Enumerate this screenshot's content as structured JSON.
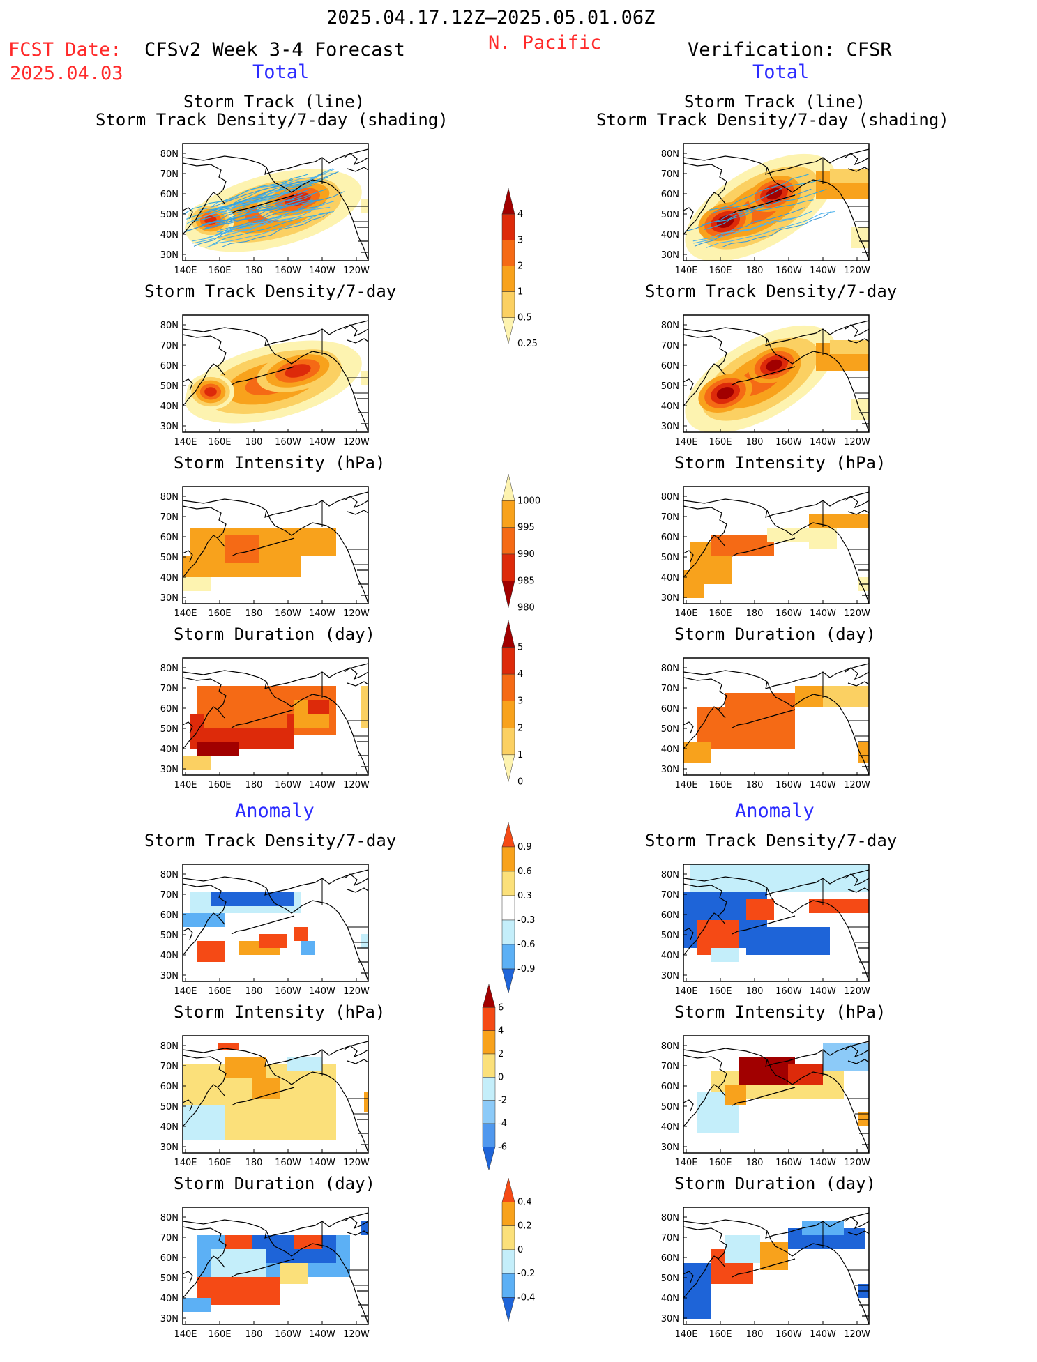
{
  "header": {
    "period": "2025.04.17.12Z–2025.05.01.06Z",
    "region": "N. Pacific",
    "fcst_label": "FCST Date:",
    "fcst_date": "2025.04.03",
    "left_model": "CFSv2 Week 3-4 Forecast",
    "right_model": "Verification: CFSR",
    "total_left": "Total",
    "total_right": "Total",
    "anomaly_left": "Anomaly",
    "anomaly_right": "Anomaly"
  },
  "panel_titles": {
    "track_line": "Storm Track (line)",
    "track_shading": "Storm Track Density/7-day (shading)",
    "density": "Storm Track Density/7-day",
    "intensity": "Storm Intensity (hPa)",
    "duration": "Storm Duration (day)"
  },
  "axis": {
    "lat_labels": [
      "80N",
      "70N",
      "60N",
      "50N",
      "40N",
      "30N"
    ],
    "lon_labels": [
      "140E",
      "160E",
      "180",
      "160W",
      "140W",
      "120W"
    ]
  },
  "colorbars": {
    "density_total": {
      "labels": [
        "4",
        "3",
        "2",
        "1",
        "0.5",
        "0.25"
      ],
      "colors": [
        "#a10000",
        "#dd2a0a",
        "#f56a15",
        "#f8a21c",
        "#fbd062",
        "#fdf3b0"
      ]
    },
    "intensity_total": {
      "labels": [
        "1000",
        "995",
        "990",
        "985",
        "980"
      ],
      "colors": [
        "#fdf3b0",
        "#f8a21c",
        "#f56a15",
        "#dd2a0a",
        "#a10000"
      ]
    },
    "duration_total": {
      "labels": [
        "5",
        "4",
        "3",
        "2",
        "1",
        "0"
      ],
      "colors": [
        "#a10000",
        "#dd2a0a",
        "#f56a15",
        "#f8a21c",
        "#fbd062",
        "#fdf3b0"
      ]
    },
    "density_anom": {
      "labels": [
        "0.9",
        "0.6",
        "0.3",
        "-0.3",
        "-0.6",
        "-0.9"
      ],
      "colors": [
        "#f54a15",
        "#f8a21c",
        "#fbe07a",
        "#ffffff",
        "#c4eefa",
        "#5cb0f5",
        "#1e64d8"
      ]
    },
    "intensity_anom": {
      "labels": [
        "6",
        "4",
        "2",
        "0",
        "-2",
        "-4",
        "-6"
      ],
      "colors": [
        "#a10000",
        "#f54a15",
        "#f8a21c",
        "#fbe07a",
        "#c4eefa",
        "#8ccaf8",
        "#5098ee",
        "#1e64d8"
      ]
    },
    "duration_anom": {
      "labels": [
        "0.4",
        "0.2",
        "0",
        "-0.2",
        "-0.4"
      ],
      "colors": [
        "#f54a15",
        "#f8a21c",
        "#fbe07a",
        "#c4eefa",
        "#5cb0f5",
        "#1e64d8"
      ]
    }
  },
  "chart_data": [
    {
      "type": "heatmap",
      "title": "Storm Track (line) / Storm Track Density/7-day (shading)",
      "side": "CFSv2 Week 3-4 Forecast",
      "field": "track_density",
      "scheme": "warm"
    },
    {
      "type": "heatmap",
      "title": "Storm Track (line) / Storm Track Density/7-day (shading)",
      "side": "Verification: CFSR",
      "field": "track_density",
      "scheme": "warm"
    },
    {
      "type": "heatmap",
      "title": "Storm Track Density/7-day",
      "side": "CFSv2 Week 3-4 Forecast",
      "field": "track_density",
      "scheme": "warm"
    },
    {
      "type": "heatmap",
      "title": "Storm Track Density/7-day",
      "side": "Verification: CFSR",
      "field": "track_density",
      "scheme": "warm"
    },
    {
      "type": "heatmap",
      "title": "Storm Intensity (hPa)",
      "side": "CFSv2 Week 3-4 Forecast",
      "field": "intensity",
      "scheme": "warm"
    },
    {
      "type": "heatmap",
      "title": "Storm Intensity (hPa)",
      "side": "Verification: CFSR",
      "field": "intensity",
      "scheme": "warm"
    },
    {
      "type": "heatmap",
      "title": "Storm Duration (day)",
      "side": "CFSv2 Week 3-4 Forecast",
      "field": "duration",
      "scheme": "warm"
    },
    {
      "type": "heatmap",
      "title": "Storm Duration (day)",
      "side": "Verification: CFSR",
      "field": "duration",
      "scheme": "warm"
    },
    {
      "type": "heatmap",
      "title": "Storm Track Density/7-day",
      "side": "CFSv2 Week 3-4 Forecast",
      "field": "density_anomaly",
      "scheme": "diverging"
    },
    {
      "type": "heatmap",
      "title": "Storm Track Density/7-day",
      "side": "Verification: CFSR",
      "field": "density_anomaly",
      "scheme": "diverging"
    },
    {
      "type": "heatmap",
      "title": "Storm Intensity (hPa)",
      "side": "CFSv2 Week 3-4 Forecast",
      "field": "intensity_anomaly",
      "scheme": "diverging"
    },
    {
      "type": "heatmap",
      "title": "Storm Intensity (hPa)",
      "side": "Verification: CFSR",
      "field": "intensity_anomaly",
      "scheme": "diverging"
    },
    {
      "type": "heatmap",
      "title": "Storm Duration (day)",
      "side": "CFSv2 Week 3-4 Forecast",
      "field": "duration_anomaly",
      "scheme": "diverging"
    },
    {
      "type": "heatmap",
      "title": "Storm Duration (day)",
      "side": "Verification: CFSR",
      "field": "duration_anomaly",
      "scheme": "diverging"
    }
  ]
}
